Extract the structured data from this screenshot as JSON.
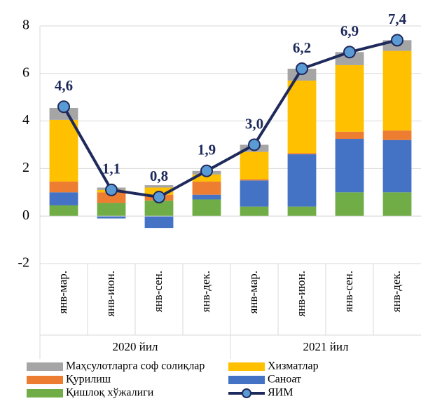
{
  "chart_data": {
    "type": "bar",
    "stacked": true,
    "categories": [
      "янв-мар.",
      "янв-июн.",
      "янв-сен.",
      "янв-дек.",
      "янв-мар.",
      "янв-июн.",
      "янв-сен.",
      "янв-дек."
    ],
    "groups": [
      "2020 йил",
      "2021 йил"
    ],
    "series": [
      {
        "name": "Қишлоқ хўжалиги",
        "color": "#70ad47",
        "values": [
          0.45,
          0.55,
          0.65,
          0.7,
          0.4,
          0.4,
          1.0,
          1.0
        ]
      },
      {
        "name": "Саноат",
        "color": "#4472c4",
        "values": [
          0.55,
          -0.1,
          -0.5,
          0.2,
          1.1,
          2.2,
          2.25,
          2.2
        ]
      },
      {
        "name": "Қурилиш",
        "color": "#ed7d31",
        "values": [
          0.45,
          0.45,
          0.25,
          0.55,
          0.05,
          0.05,
          0.3,
          0.4
        ]
      },
      {
        "name": "Хизматлар",
        "color": "#ffc000",
        "values": [
          2.6,
          0.1,
          0.3,
          0.3,
          1.15,
          3.05,
          2.8,
          3.35
        ]
      },
      {
        "name": "Маҳсулотларга соф солиқлар",
        "color": "#a5a5a5",
        "values": [
          0.5,
          0.1,
          0.1,
          0.15,
          0.3,
          0.5,
          0.55,
          0.45
        ]
      },
      {
        "name": "ЯИМ",
        "type": "line",
        "color": "#1f2a5c",
        "marker_color": "#5b9bd5",
        "values": [
          4.6,
          1.1,
          0.8,
          1.9,
          3.0,
          6.2,
          6.9,
          7.4
        ],
        "value_labels": [
          "4,6",
          "1,1",
          "0,8",
          "1,9",
          "3,0",
          "6,2",
          "6,9",
          "7,4"
        ]
      }
    ],
    "ylim": [
      -2,
      8
    ],
    "yticks": [
      -2,
      0,
      2,
      4,
      6,
      8
    ],
    "grid": true
  }
}
